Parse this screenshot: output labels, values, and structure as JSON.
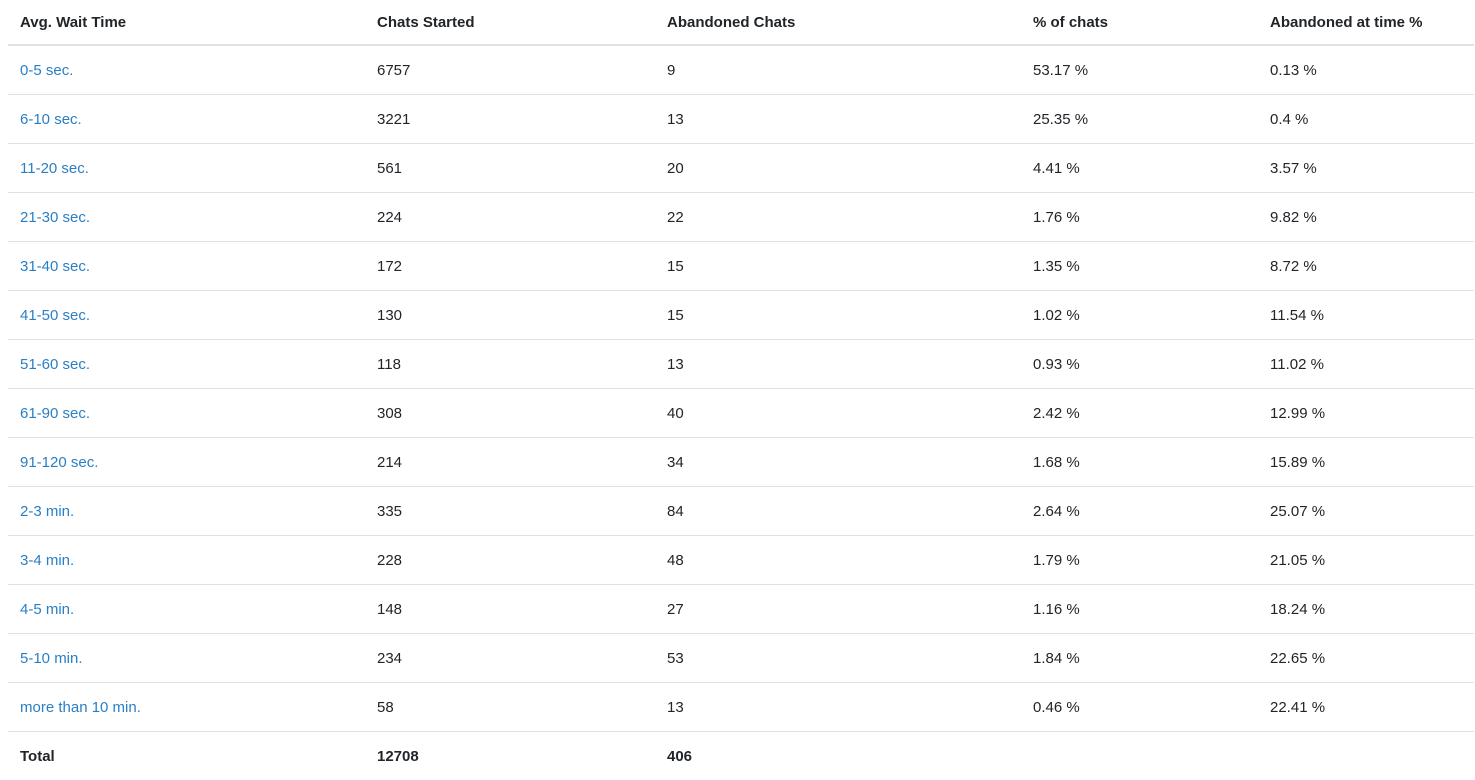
{
  "columns": {
    "wait_time": "Avg. Wait Time",
    "chats_started": "Chats Started",
    "abandoned_chats": "Abandoned Chats",
    "pct_chats": "% of chats",
    "abandoned_at_time_pct": "Abandoned at time %"
  },
  "rows": [
    {
      "range": "0-5 sec.",
      "started": "6757",
      "abandoned": "9",
      "pct": "53.17 %",
      "abandoned_pct": "0.13 %"
    },
    {
      "range": "6-10 sec.",
      "started": "3221",
      "abandoned": "13",
      "pct": "25.35 %",
      "abandoned_pct": "0.4 %"
    },
    {
      "range": "11-20 sec.",
      "started": "561",
      "abandoned": "20",
      "pct": "4.41 %",
      "abandoned_pct": "3.57 %"
    },
    {
      "range": "21-30 sec.",
      "started": "224",
      "abandoned": "22",
      "pct": "1.76 %",
      "abandoned_pct": "9.82 %"
    },
    {
      "range": "31-40 sec.",
      "started": "172",
      "abandoned": "15",
      "pct": "1.35 %",
      "abandoned_pct": "8.72 %"
    },
    {
      "range": "41-50 sec.",
      "started": "130",
      "abandoned": "15",
      "pct": "1.02 %",
      "abandoned_pct": "11.54 %"
    },
    {
      "range": "51-60 sec.",
      "started": "118",
      "abandoned": "13",
      "pct": "0.93 %",
      "abandoned_pct": "11.02 %"
    },
    {
      "range": "61-90 sec.",
      "started": "308",
      "abandoned": "40",
      "pct": "2.42 %",
      "abandoned_pct": "12.99 %"
    },
    {
      "range": "91-120 sec.",
      "started": "214",
      "abandoned": "34",
      "pct": "1.68 %",
      "abandoned_pct": "15.89 %"
    },
    {
      "range": "2-3 min.",
      "started": "335",
      "abandoned": "84",
      "pct": "2.64 %",
      "abandoned_pct": "25.07 %"
    },
    {
      "range": "3-4 min.",
      "started": "228",
      "abandoned": "48",
      "pct": "1.79 %",
      "abandoned_pct": "21.05 %"
    },
    {
      "range": "4-5 min.",
      "started": "148",
      "abandoned": "27",
      "pct": "1.16 %",
      "abandoned_pct": "18.24 %"
    },
    {
      "range": "5-10 min.",
      "started": "234",
      "abandoned": "53",
      "pct": "1.84 %",
      "abandoned_pct": "22.65 %"
    },
    {
      "range": "more than 10 min.",
      "started": "58",
      "abandoned": "13",
      "pct": "0.46 %",
      "abandoned_pct": "22.41 %"
    }
  ],
  "total": {
    "label": "Total",
    "started": "12708",
    "abandoned": "406"
  },
  "colors": {
    "link": "#2a7fc4",
    "text": "#212529",
    "border": "#dee2e6"
  }
}
